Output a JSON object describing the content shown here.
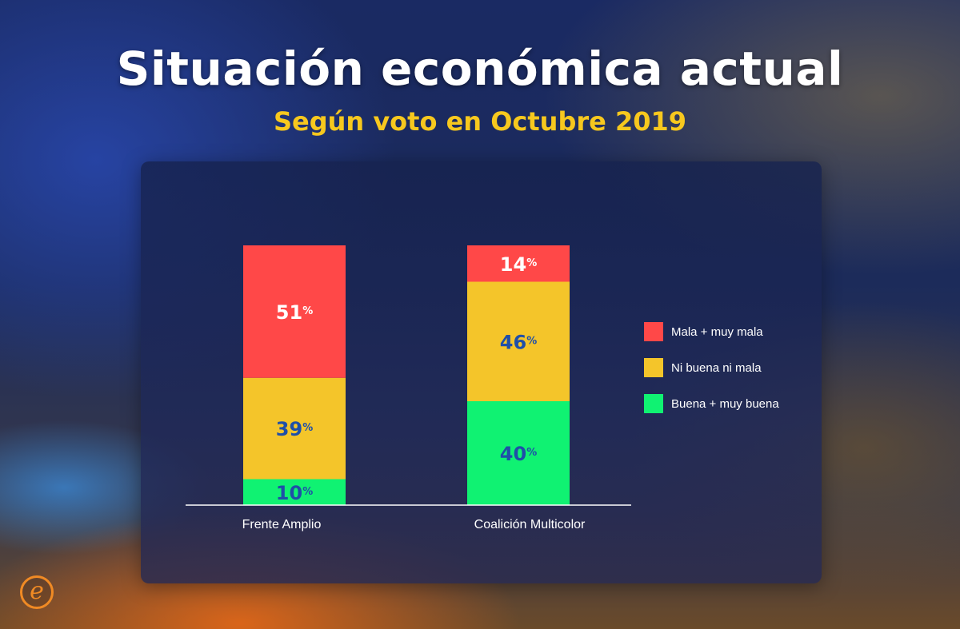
{
  "header": {
    "title": "Situación económica actual",
    "subtitle": "Según voto en Octubre 2019"
  },
  "colors": {
    "mala": "#ff4848",
    "ni": "#f4c52a",
    "buena": "#10f272",
    "label_dark": "#1f4fa8",
    "label_light": "#ffffff"
  },
  "chart_data": {
    "type": "bar",
    "stacked": true,
    "title": "Situación económica actual",
    "subtitle": "Según voto en Octubre 2019",
    "categories": [
      "Frente Amplio",
      "Coalición Multicolor"
    ],
    "series": [
      {
        "name": "Buena + muy buena",
        "key": "buena",
        "values": [
          10,
          40
        ]
      },
      {
        "name": "Ni buena ni mala",
        "key": "ni",
        "values": [
          39,
          46
        ]
      },
      {
        "name": "Mala + muy mala",
        "key": "mala",
        "values": [
          51,
          14
        ]
      }
    ],
    "legend_order": [
      "mala",
      "ni",
      "buena"
    ],
    "value_suffix": "%",
    "ylim": [
      0,
      100
    ],
    "xlabel": "",
    "ylabel": "",
    "legend_position": "right"
  },
  "logo": {
    "glyph": "e"
  }
}
